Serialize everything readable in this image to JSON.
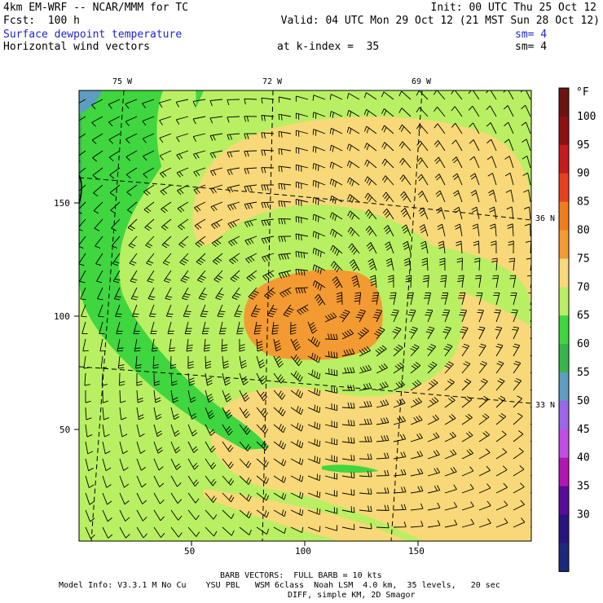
{
  "header": {
    "model": "4km EM-WRF -- NCAR/MMM for TC",
    "forecast": "Fcst:  100 h",
    "init": "Init: 00 UTC Thu 25 Oct 12",
    "valid": "Valid: 04 UTC Mon 29 Oct 12 (21 MST Sun 28 Oct 12)",
    "field1": "Surface dewpoint temperature",
    "field1_sm": "sm= 4",
    "field2": "Horizontal wind vectors",
    "k_index": "at k-index =  35",
    "field2_sm": "sm= 4"
  },
  "map": {
    "lon_labels": [
      "75 W",
      "72 W",
      "69 W"
    ],
    "lat_labels": [
      "36 N",
      "33 N"
    ],
    "x_ticks": [
      "50",
      "100",
      "150"
    ],
    "y_ticks": [
      "150",
      "100",
      "50"
    ]
  },
  "colorbar": {
    "unit": "°F",
    "levels": [
      {
        "label": "100",
        "color": "#6b1410"
      },
      {
        "label": "95",
        "color": "#8f1010"
      },
      {
        "label": "90",
        "color": "#c61c1c"
      },
      {
        "label": "85",
        "color": "#ea3f1e"
      },
      {
        "label": "80",
        "color": "#f07d1c"
      },
      {
        "label": "75",
        "color": "#f39a32"
      },
      {
        "label": "70",
        "color": "#f8d878"
      },
      {
        "label": "65",
        "color": "#b9ef63"
      },
      {
        "label": "60",
        "color": "#3fd63f"
      },
      {
        "label": "55",
        "color": "#38b54a"
      },
      {
        "label": "50",
        "color": "#5d9dbf"
      },
      {
        "label": "45",
        "color": "#9b66e8"
      },
      {
        "label": "40",
        "color": "#c14de6"
      },
      {
        "label": "35",
        "color": "#b316b3"
      },
      {
        "label": "30",
        "color": "#5a0c9a"
      },
      {
        "label": "",
        "color": "#2a1480"
      },
      {
        "label": "",
        "color": "#1c2a7a"
      }
    ]
  },
  "footer": {
    "barb": "BARB VECTORS:  FULL BARB = 10 kts",
    "model_info": "Model Info: V3.3.1 M No Cu    YSU PBL   WSM 6class  Noah LSM  4.0 km,  35 levels,   20 sec",
    "diff": "DIFF, simple KM, 2D Smagor"
  }
}
